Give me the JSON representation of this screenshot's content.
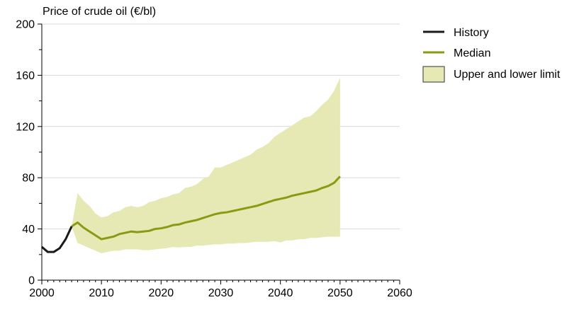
{
  "chart_data": {
    "type": "area",
    "title": "",
    "ylabel": "Price of crude oil (€/bl)",
    "xlabel": "",
    "xlim": [
      2000,
      2060
    ],
    "ylim": [
      0,
      200
    ],
    "x_ticks": [
      2000,
      2010,
      2020,
      2030,
      2040,
      2050,
      2060
    ],
    "y_ticks": [
      0,
      40,
      80,
      120,
      160,
      200
    ],
    "y_minor_ticks": [
      20,
      60,
      100,
      140,
      180
    ],
    "x_minor_ticks": [
      2001,
      2002,
      2003,
      2004,
      2005,
      2006,
      2007,
      2008,
      2009,
      2011,
      2012,
      2013,
      2014,
      2015,
      2016,
      2017,
      2018,
      2019,
      2021,
      2022,
      2023,
      2024,
      2025,
      2026,
      2027,
      2028,
      2029,
      2031,
      2032,
      2033,
      2034,
      2035,
      2036,
      2037,
      2038,
      2039,
      2041,
      2042,
      2043,
      2044,
      2045,
      2046,
      2047,
      2048,
      2049,
      2051,
      2052,
      2053,
      2054,
      2055,
      2056,
      2057,
      2058,
      2059
    ],
    "grid": true,
    "legend_position": "top-right",
    "colors": {
      "history": "#1a1a1a",
      "median": "#8a9a12",
      "band_fill": "#e6e9b4",
      "grid": "#d9d9d9"
    },
    "series": [
      {
        "name": "History",
        "x": [
          2000,
          2001,
          2002,
          2003,
          2004,
          2005
        ],
        "values": [
          26,
          22,
          22,
          25,
          32,
          42
        ]
      },
      {
        "name": "Median",
        "x": [
          2005,
          2006,
          2007,
          2008,
          2009,
          2010,
          2011,
          2012,
          2013,
          2014,
          2015,
          2016,
          2017,
          2018,
          2019,
          2020,
          2021,
          2022,
          2023,
          2024,
          2025,
          2026,
          2027,
          2028,
          2029,
          2030,
          2031,
          2032,
          2033,
          2034,
          2035,
          2036,
          2037,
          2038,
          2039,
          2040,
          2041,
          2042,
          2043,
          2044,
          2045,
          2046,
          2047,
          2048,
          2049,
          2050
        ],
        "values": [
          42,
          45,
          41,
          38,
          35,
          32,
          33,
          34,
          36,
          37,
          38,
          37.5,
          38,
          38.5,
          40,
          40.5,
          41.5,
          43,
          43.5,
          45,
          46,
          47,
          48.5,
          50,
          51.5,
          52.5,
          53,
          54,
          55,
          56,
          57,
          58,
          59.5,
          61,
          62.5,
          63.5,
          64.5,
          66,
          67,
          68,
          69,
          70,
          72,
          73.5,
          76,
          81
        ]
      },
      {
        "name": "Upper and lower limit",
        "x": [
          2005,
          2006,
          2007,
          2008,
          2009,
          2010,
          2011,
          2012,
          2013,
          2014,
          2015,
          2016,
          2017,
          2018,
          2019,
          2020,
          2021,
          2022,
          2023,
          2024,
          2025,
          2026,
          2027,
          2028,
          2029,
          2030,
          2031,
          2032,
          2033,
          2034,
          2035,
          2036,
          2037,
          2038,
          2039,
          2040,
          2041,
          2042,
          2043,
          2044,
          2045,
          2046,
          2047,
          2048,
          2049,
          2050
        ],
        "upper": [
          42,
          68,
          62,
          58,
          52,
          49,
          50,
          53,
          54,
          57,
          58,
          57,
          58,
          61,
          62,
          64,
          65,
          67,
          68,
          72,
          73,
          75,
          79,
          81,
          88,
          88,
          90,
          92,
          94,
          96,
          98,
          102,
          104,
          107,
          112,
          115,
          118,
          121,
          124,
          127,
          128,
          132,
          137,
          141,
          148,
          158
        ],
        "lower": [
          42,
          29,
          27,
          25,
          23,
          21,
          22,
          23,
          23,
          24,
          24,
          24,
          23.5,
          23.5,
          24,
          24.5,
          25,
          26,
          25.5,
          26,
          26,
          27,
          27,
          27.5,
          28,
          28,
          28.5,
          28.5,
          29,
          29,
          29.5,
          30,
          30,
          30,
          30.5,
          29.5,
          31,
          31,
          32,
          32,
          33,
          33,
          33.5,
          34,
          34,
          34
        ]
      }
    ]
  }
}
